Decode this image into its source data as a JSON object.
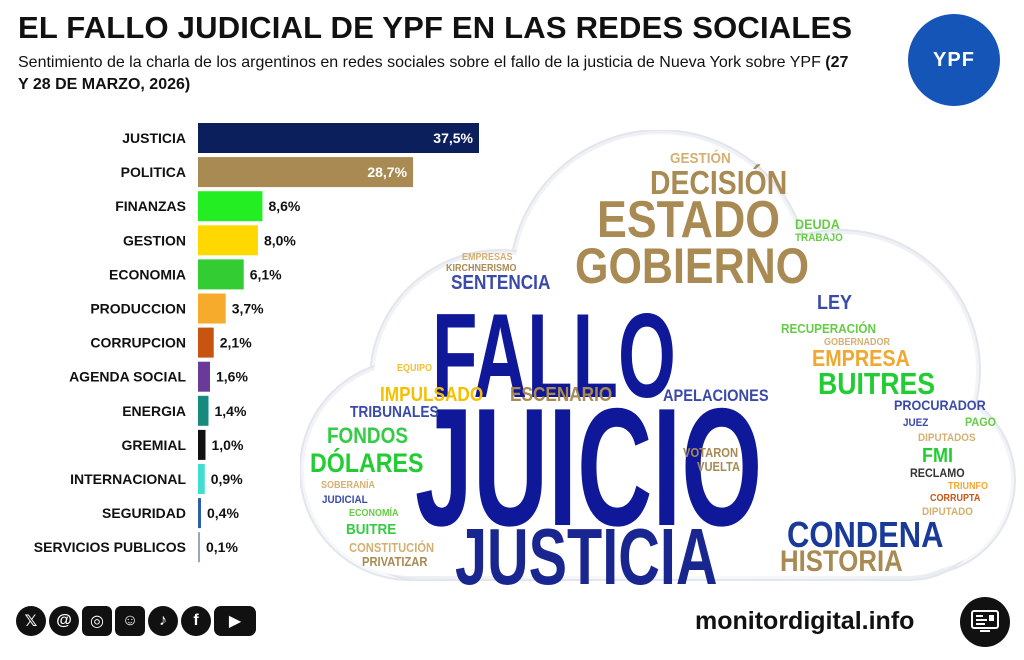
{
  "header": {
    "title": "EL FALLO JUDICIAL DE YPF EN LAS REDES SOCIALES",
    "subtitle": "Sentimiento de la charla de los argentinos en redes sociales sobre el fallo de la justicia de Nueva York sobre YPF",
    "subtitle_dates": "(27 Y 28 DE MARZO, 2026)"
  },
  "logo": {
    "text": "YPF",
    "color": "#1655b8"
  },
  "chart_data": {
    "type": "bar",
    "orientation": "horizontal",
    "categories": [
      "JUSTICIA",
      "POLITICA",
      "FINANZAS",
      "GESTION",
      "ECONOMIA",
      "PRODUCCION",
      "CORRUPCION",
      "AGENDA SOCIAL",
      "ENERGIA",
      "GREMIAL",
      "INTERNACIONAL",
      "SEGURIDAD",
      "SERVICIOS PUBLICOS"
    ],
    "values": [
      37.5,
      28.7,
      8.6,
      8.0,
      6.1,
      3.7,
      2.1,
      1.6,
      1.4,
      1.0,
      0.9,
      0.4,
      0.1
    ],
    "labels": [
      "37,5%",
      "28,7%",
      "8,6%",
      "8,0%",
      "6,1%",
      "3,7%",
      "2,1%",
      "1,6%",
      "1,4%",
      "1,0%",
      "0,9%",
      "0,4%",
      "0,1%"
    ],
    "colors": [
      "#0a1f5c",
      "#a88a52",
      "#22ee22",
      "#ffd800",
      "#33cc33",
      "#f7ab2c",
      "#c85412",
      "#6a3a98",
      "#158a7d",
      "#111111",
      "#40ddd0",
      "#2b5fa8",
      "#9aa6b8"
    ],
    "xlim": [
      0,
      37.5
    ],
    "grid": false,
    "legend": "none"
  },
  "word_cloud": {
    "words": [
      {
        "text": "FALLO",
        "color": "#10189a"
      },
      {
        "text": "JUICIO",
        "color": "#10189a"
      },
      {
        "text": "JUSTICIA",
        "color": "#1a2690"
      },
      {
        "text": "GOBIERNO",
        "color": "#a88a52"
      },
      {
        "text": "ESTADO",
        "color": "#a88a52"
      },
      {
        "text": "DECISIÓN",
        "color": "#a88a52"
      },
      {
        "text": "GESTIÓN",
        "color": "#d4b070"
      },
      {
        "text": "CONDENA",
        "color": "#1a3a9a"
      },
      {
        "text": "HISTORIA",
        "color": "#a88a52"
      },
      {
        "text": "BUITRES",
        "color": "#22cc33"
      },
      {
        "text": "EMPRESA",
        "color": "#f0a830"
      },
      {
        "text": "DÓLARES",
        "color": "#22cc33"
      },
      {
        "text": "FONDOS",
        "color": "#33cc44"
      },
      {
        "text": "SENTENCIA",
        "color": "#3a4aa8"
      },
      {
        "text": "LEY",
        "color": "#3a4aa8"
      },
      {
        "text": "ESCENARIO",
        "color": "#a88a52"
      },
      {
        "text": "IMPULSADO",
        "color": "#f5c000"
      },
      {
        "text": "APELACIONES",
        "color": "#3a4aa8"
      },
      {
        "text": "TRIBUNALES",
        "color": "#3a4aa8"
      },
      {
        "text": "FMI",
        "color": "#22cc33"
      },
      {
        "text": "PROCURADOR",
        "color": "#3a4aa8"
      },
      {
        "text": "RECUPERACIÓN",
        "color": "#66cc44"
      },
      {
        "text": "DEUDA",
        "color": "#66cc44"
      },
      {
        "text": "TRABAJO",
        "color": "#66cc44"
      },
      {
        "text": "GOBERNADOR",
        "color": "#d4b070"
      },
      {
        "text": "EMPRESAS",
        "color": "#d4b070"
      },
      {
        "text": "KIRCHNERISMO",
        "color": "#a88a52"
      },
      {
        "text": "EQUIPO",
        "color": "#f0c030"
      },
      {
        "text": "VOTARON",
        "color": "#a88a52"
      },
      {
        "text": "VUELTA",
        "color": "#a88a52"
      },
      {
        "text": "JUEZ",
        "color": "#3a4aa8"
      },
      {
        "text": "PAGO",
        "color": "#66cc44"
      },
      {
        "text": "DIPUTADOS",
        "color": "#d4b070"
      },
      {
        "text": "RECLAMO",
        "color": "#333333"
      },
      {
        "text": "TRIUNFO",
        "color": "#f0a830"
      },
      {
        "text": "CORRUPTA",
        "color": "#c85412"
      },
      {
        "text": "DIPUTADO",
        "color": "#d4b070"
      },
      {
        "text": "SOBERANÍA",
        "color": "#d4b070"
      },
      {
        "text": "JUDICIAL",
        "color": "#3a4aa8"
      },
      {
        "text": "ECONOMÍA",
        "color": "#66cc44"
      },
      {
        "text": "BUITRE",
        "color": "#33cc44"
      },
      {
        "text": "CONSTITUCIÓN",
        "color": "#d4b070"
      },
      {
        "text": "PRIVATIZAR",
        "color": "#a88a52"
      }
    ]
  },
  "footer": {
    "social_icons": [
      {
        "name": "x-icon",
        "glyph": "𝕏"
      },
      {
        "name": "threads-icon",
        "glyph": "@"
      },
      {
        "name": "instagram-icon",
        "glyph": "◎"
      },
      {
        "name": "reddit-icon",
        "glyph": "☺"
      },
      {
        "name": "tiktok-icon",
        "glyph": "♪"
      },
      {
        "name": "facebook-icon",
        "glyph": "f"
      },
      {
        "name": "youtube-icon",
        "glyph": "▶"
      }
    ],
    "site": "monitordigital.info"
  }
}
